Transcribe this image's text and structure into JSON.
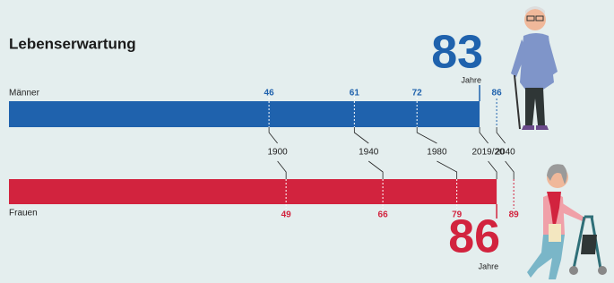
{
  "chart_data": {
    "type": "lifeline",
    "title": "Lebenserwartung",
    "unit_label": "Jahre",
    "categories": [
      "1900",
      "1940",
      "1980",
      "2019/20",
      "2040"
    ],
    "highlight": "2019/20",
    "xlim": [
      0,
      100
    ],
    "series": [
      {
        "name": "Männer",
        "color": "#1f62ad",
        "values": [
          46,
          61,
          72,
          83,
          86
        ]
      },
      {
        "name": "Frauen",
        "color": "#d2233e",
        "values": [
          49,
          66,
          79,
          86,
          89
        ]
      }
    ]
  }
}
